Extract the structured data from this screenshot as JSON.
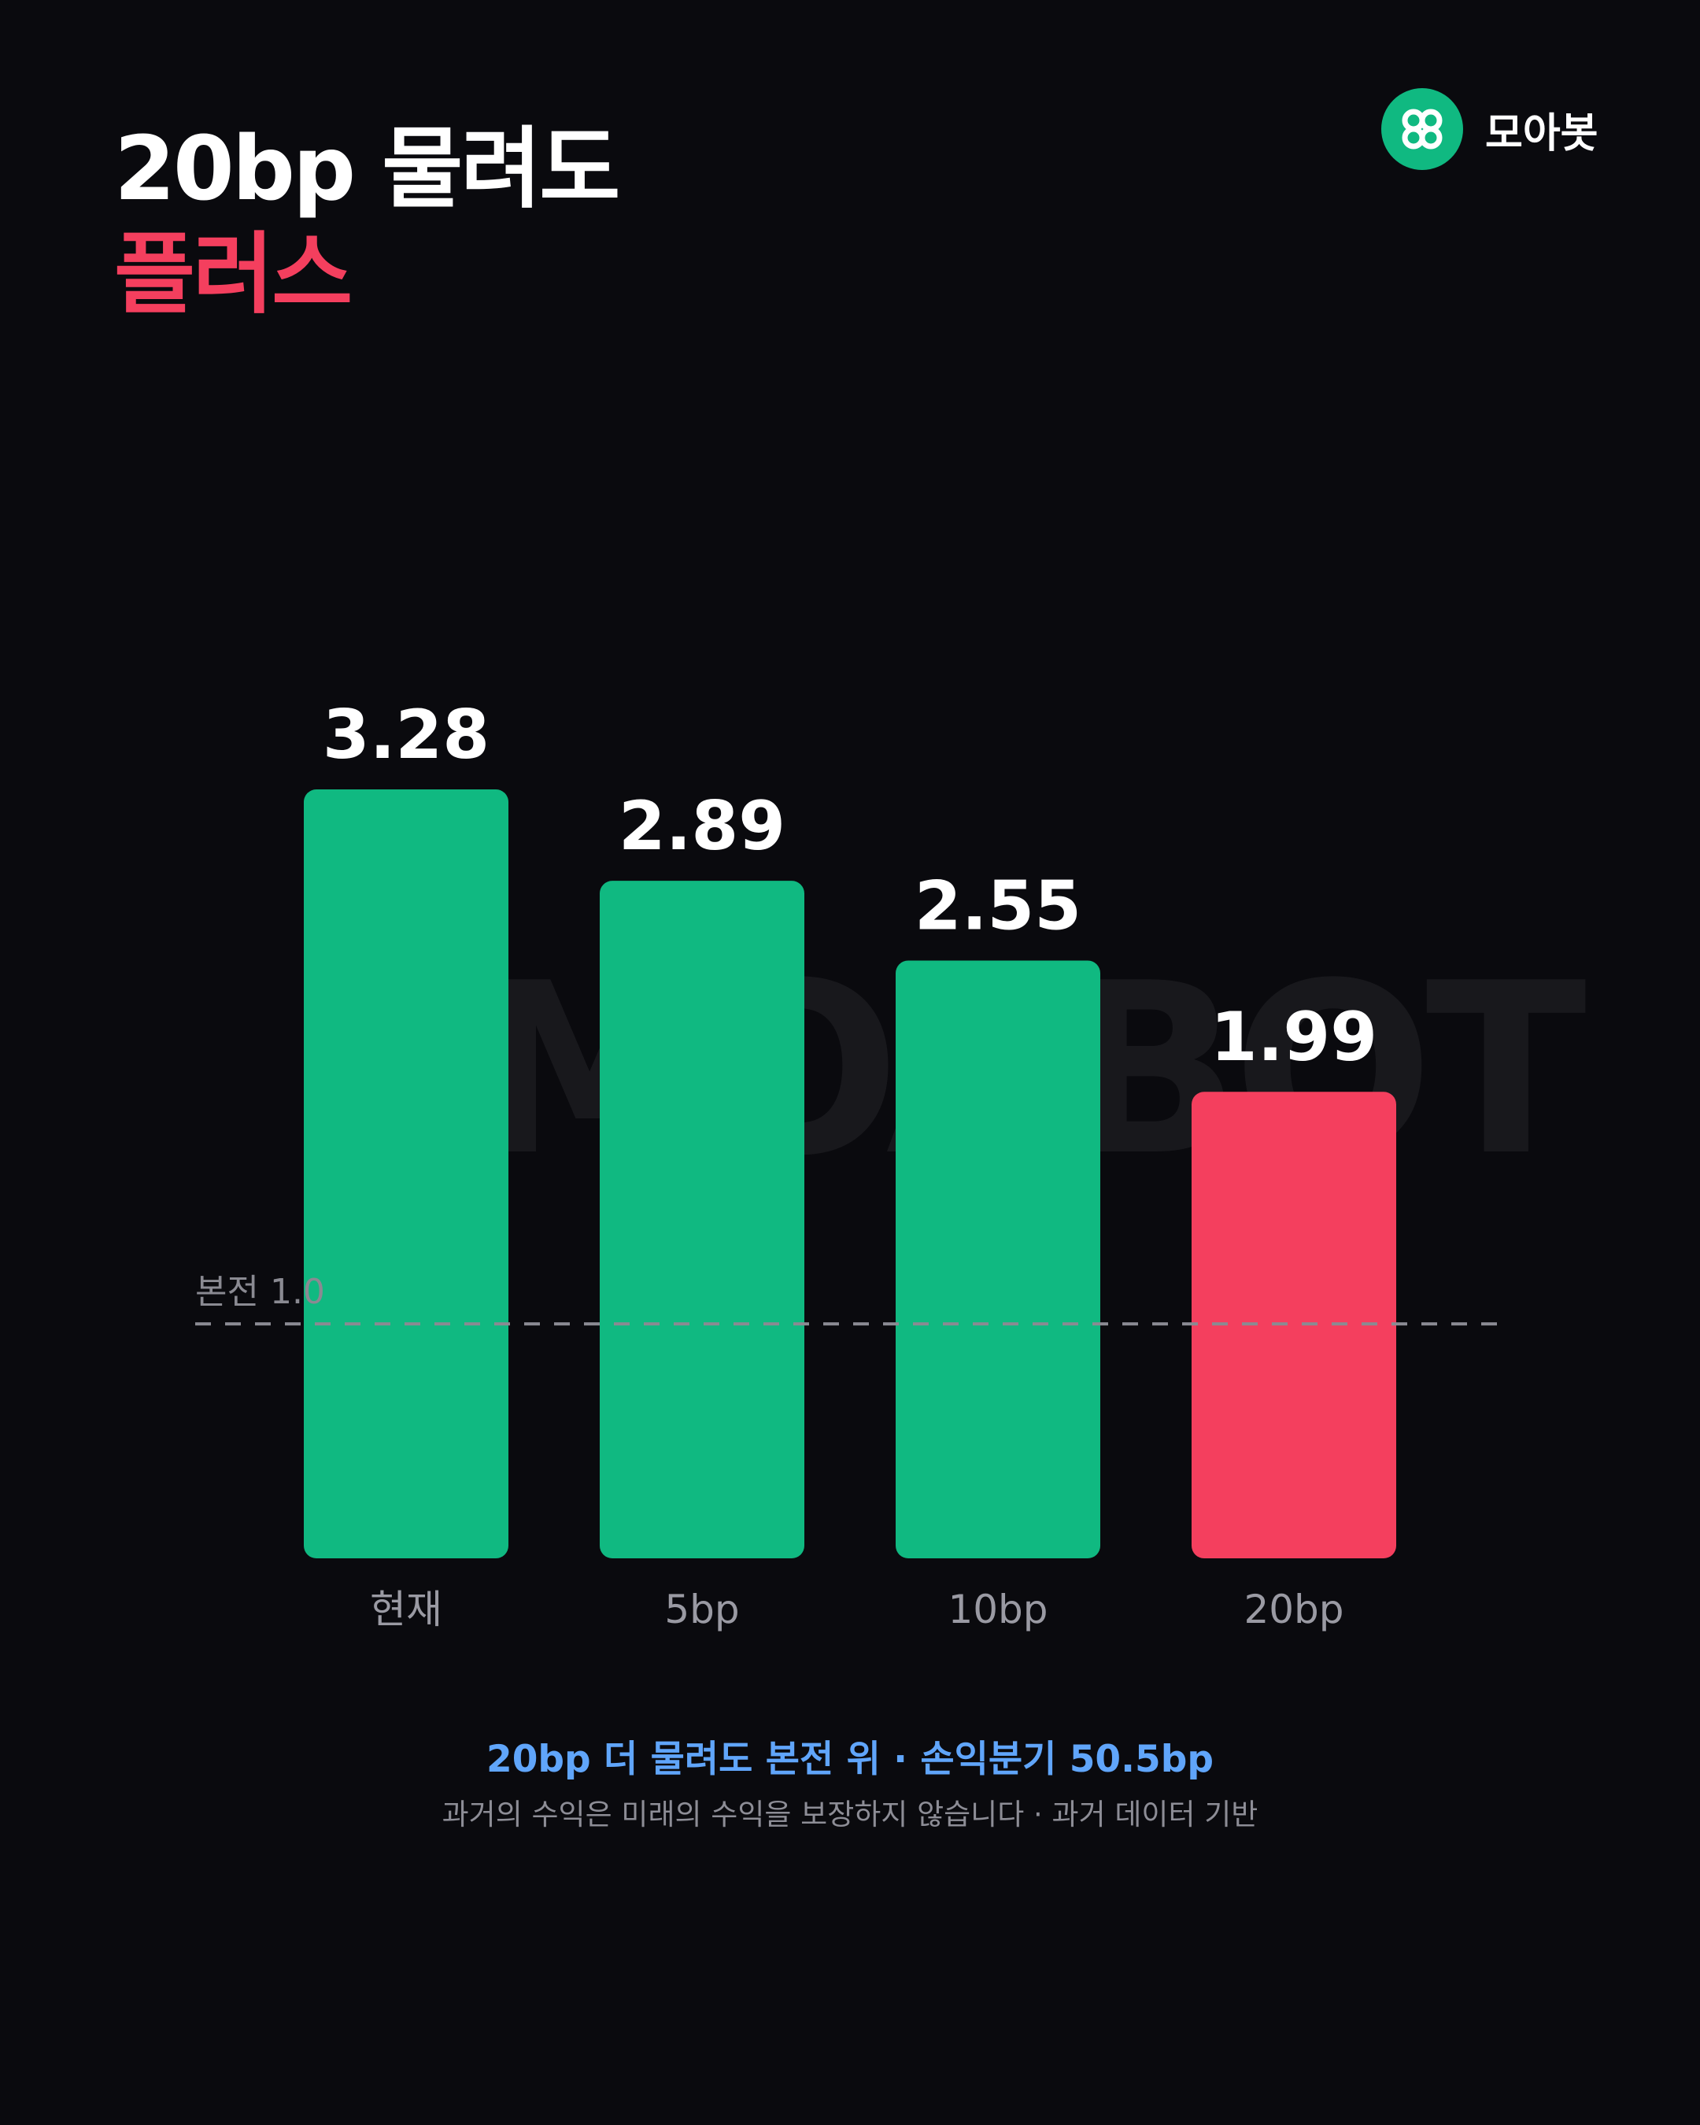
{
  "headline": {
    "line1": "20bp 물려도",
    "line2": "플러스",
    "accent_color": "#f43f5e"
  },
  "brand": {
    "name": "모아봇",
    "icon": "clover-icon",
    "color": "#10b981"
  },
  "watermark": "MOABOT",
  "chart_data": {
    "type": "bar",
    "categories": [
      "현재",
      "5bp",
      "10bp",
      "20bp"
    ],
    "values": [
      3.28,
      2.89,
      2.55,
      1.99
    ],
    "bar_colors": [
      "#10b981",
      "#10b981",
      "#10b981",
      "#f43f5e"
    ],
    "reference_line": {
      "label": "본전 1.0",
      "value": 1.0
    },
    "ylim": [
      0,
      3.28
    ],
    "grid": false
  },
  "footer": {
    "highlight": "20bp 더 물려도 본전 위 · 손익분기 50.5bp",
    "highlight_color": "#60a5fa",
    "disclaimer": "과거의 수익은 미래의 수익을 보장하지 않습니다 · 과거 데이터 기반"
  }
}
